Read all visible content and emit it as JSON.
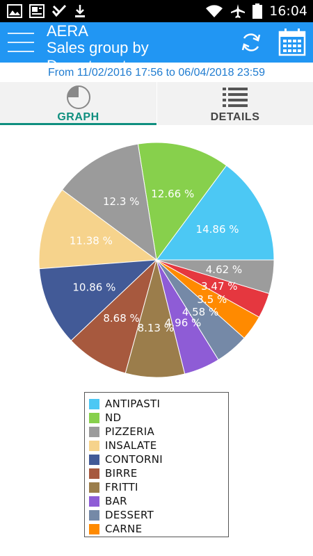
{
  "status_bar": {
    "time": "16:04",
    "icons": [
      "image-icon",
      "news-icon",
      "checkmark-app-icon",
      "download-icon",
      "wifi-icon",
      "airplane-icon",
      "battery-icon"
    ]
  },
  "app_bar": {
    "title_line1": "AERA",
    "title_line2": "Sales group by Department",
    "background": "#2196f3",
    "icons": [
      "hamburger-icon",
      "refresh-icon",
      "calendar-icon"
    ]
  },
  "date_range": {
    "text": "From 11/02/2016 17:56 to 06/04/2018 23:59",
    "color": "#1e7bd0"
  },
  "tabs": [
    {
      "label": "GRAPH",
      "icon": "pie-chart-icon",
      "selected": true
    },
    {
      "label": "DETAILS",
      "icon": "list-icon",
      "selected": false
    }
  ],
  "chart_data": {
    "type": "pie",
    "labels": [
      "ANTIPASTI",
      "ND",
      "PIZZERIA",
      "INSALATE",
      "CONTORNI",
      "BIRRE",
      "FRITTI",
      "BAR",
      "DESSERT",
      "CARNE",
      "",
      ""
    ],
    "values": [
      14.86,
      12.66,
      12.3,
      11.38,
      10.86,
      8.68,
      8.13,
      4.96,
      4.58,
      3.5,
      3.47,
      4.62
    ],
    "value_labels": [
      "14.86 %",
      "12.66 %",
      "12.3 %",
      "11.38 %",
      "10.86 %",
      "8.68 %",
      "8.13 %",
      "4.96 %",
      "4.58 %",
      "3.5 %",
      "3.47 %",
      "4.62 %"
    ],
    "colors": [
      "#4cc8f4",
      "#87d04c",
      "#9b9b9b",
      "#f6d38c",
      "#425a97",
      "#a7593e",
      "#9b7d4b",
      "#8e5cd6",
      "#7589a7",
      "#ff8a00",
      "#e5373f",
      "#9c9c9c"
    ],
    "legend": [
      "ANTIPASTI",
      "ND",
      "PIZZERIA",
      "INSALATE",
      "CONTORNI",
      "BIRRE",
      "FRITTI",
      "BAR",
      "DESSERT",
      "CARNE"
    ],
    "legend_placement": "bottom"
  }
}
